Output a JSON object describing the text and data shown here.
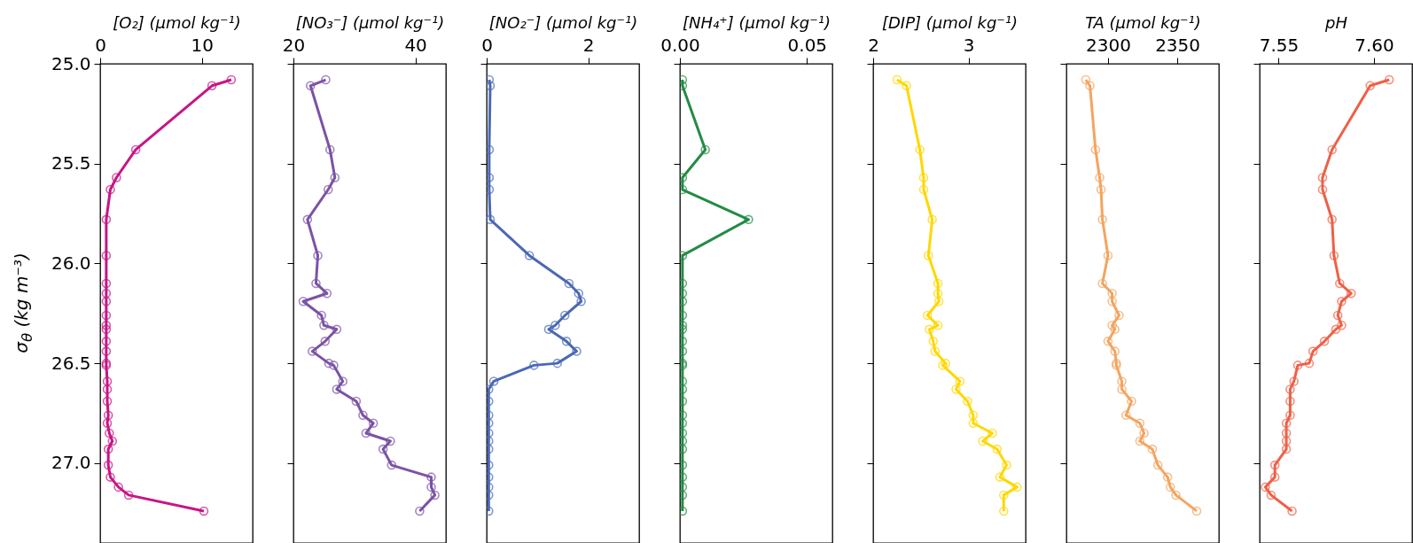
{
  "chart_data": [
    {
      "type": "line",
      "xlabel": "[O₂] (μmol kg⁻¹)",
      "ylabel": "σ$_{θ}$ (kg m⁻³)",
      "color": "#c71585",
      "marker": "circle",
      "xlim": [
        0,
        15
      ],
      "xticks": [
        0,
        10
      ],
      "ylim": [
        27.4,
        25.0
      ],
      "yticks": [
        {
          "value": 25,
          "label": "25.0"
        },
        25.5,
        {
          "value": 26,
          "label": "26.0"
        },
        26.5,
        {
          "value": 27,
          "label": "27.0"
        }
      ],
      "x": [
        12.9,
        11.0,
        3.5,
        1.6,
        1.0,
        0.6,
        0.6,
        0.6,
        0.6,
        0.6,
        0.6,
        0.6,
        0.6,
        0.6,
        0.6,
        0.6,
        0.6,
        0.7,
        0.7,
        0.7,
        0.8,
        0.7,
        0.9,
        1.2,
        0.8,
        0.8,
        1.0,
        1.8,
        2.8,
        10.2
      ],
      "values": [
        25.08,
        25.11,
        25.43,
        25.57,
        25.63,
        25.78,
        25.96,
        26.1,
        26.15,
        26.19,
        26.26,
        26.31,
        26.33,
        26.39,
        26.44,
        26.5,
        26.51,
        26.59,
        26.63,
        26.69,
        26.76,
        26.8,
        26.85,
        26.89,
        26.93,
        27.01,
        27.07,
        27.12,
        27.16,
        27.24
      ]
    },
    {
      "type": "line",
      "xlabel": "[NO₃⁻] (μmol kg⁻¹)",
      "color": "#7b52a6",
      "marker": "circle",
      "tick_labels": "x",
      "xlim": [
        20,
        45
      ],
      "xticks": [
        20,
        40
      ],
      "ylim": [
        27.4,
        25.0
      ],
      "yticks": [
        25,
        25.5,
        26,
        26.5,
        27
      ],
      "x": [
        25.3,
        22.8,
        26.0,
        26.8,
        25.7,
        22.3,
        24.0,
        23.7,
        25.5,
        21.6,
        24.6,
        25.0,
        27.1,
        25.2,
        23.1,
        25.8,
        26.6,
        28.1,
        27.1,
        30.3,
        31.4,
        33.1,
        31.9,
        35.9,
        34.7,
        36.1,
        42.6,
        42.6,
        43.2,
        40.7
      ],
      "values": [
        25.08,
        25.11,
        25.43,
        25.57,
        25.63,
        25.78,
        25.96,
        26.1,
        26.15,
        26.19,
        26.26,
        26.31,
        26.33,
        26.39,
        26.44,
        26.5,
        26.51,
        26.59,
        26.63,
        26.69,
        26.76,
        26.8,
        26.85,
        26.89,
        26.93,
        27.01,
        27.07,
        27.12,
        27.16,
        27.24
      ]
    },
    {
      "type": "line",
      "xlabel": "[NO₂⁻] (μmol kg⁻¹)",
      "color": "#4a69b4",
      "marker": "circle",
      "tick_labels": "x",
      "xlim": [
        0,
        3
      ],
      "xticks": [
        0,
        2
      ],
      "ylim": [
        27.4,
        25.0
      ],
      "yticks": [
        25,
        25.5,
        26,
        26.5,
        27
      ],
      "x": [
        0.05,
        0.07,
        0.05,
        0.05,
        0.05,
        0.07,
        0.84,
        1.62,
        1.81,
        1.86,
        1.54,
        1.35,
        1.22,
        1.57,
        1.77,
        1.39,
        0.93,
        0.14,
        0.04,
        0.04,
        0.04,
        0.04,
        0.04,
        0.04,
        0.04,
        0.04,
        0.04,
        0.04,
        0.04,
        0.04
      ],
      "values": [
        25.08,
        25.11,
        25.43,
        25.57,
        25.63,
        25.78,
        25.96,
        26.1,
        26.15,
        26.19,
        26.26,
        26.31,
        26.33,
        26.39,
        26.44,
        26.5,
        26.51,
        26.59,
        26.63,
        26.69,
        26.76,
        26.8,
        26.85,
        26.89,
        26.93,
        27.01,
        27.07,
        27.12,
        27.16,
        27.24
      ]
    },
    {
      "type": "line",
      "xlabel": "[NH₄⁺] (μmol kg⁻¹)",
      "color": "#238b45",
      "marker": "circle",
      "tick_labels": "x",
      "xlim": [
        0,
        0.06
      ],
      "xticks": [
        {
          "value": 0,
          "label": "0.00"
        },
        0.05
      ],
      "ylim": [
        27.4,
        25.0
      ],
      "yticks": [
        25,
        25.5,
        26,
        26.5,
        27
      ],
      "x": [
        0.001,
        0.001,
        0.01,
        0.001,
        0.001,
        0.027,
        0.001,
        0.001,
        0.001,
        0.001,
        0.001,
        0.001,
        0.001,
        0.001,
        0.001,
        0.001,
        0.001,
        0.001,
        0.001,
        0.001,
        0.001,
        0.001,
        0.001,
        0.001,
        0.001,
        0.001,
        0.001,
        0.001,
        0.001,
        0.001
      ],
      "values": [
        25.08,
        25.11,
        25.43,
        25.57,
        25.63,
        25.78,
        25.96,
        26.1,
        26.15,
        26.19,
        26.26,
        26.31,
        26.33,
        26.39,
        26.44,
        26.5,
        26.51,
        26.59,
        26.63,
        26.69,
        26.76,
        26.8,
        26.85,
        26.89,
        26.93,
        27.01,
        27.07,
        27.12,
        27.16,
        27.24
      ]
    },
    {
      "type": "line",
      "xlabel": "[DIP] (μmol kg⁻¹)",
      "color": "#ffd700",
      "marker": "circle",
      "tick_labels": "x",
      "xlim": [
        2,
        3.6
      ],
      "xticks": [
        2,
        3
      ],
      "ylim": [
        27.4,
        25.0
      ],
      "yticks": [
        25,
        25.5,
        26,
        26.5,
        27
      ],
      "x": [
        2.25,
        2.35,
        2.49,
        2.53,
        2.53,
        2.62,
        2.58,
        2.68,
        2.68,
        2.69,
        2.57,
        2.68,
        2.59,
        2.63,
        2.65,
        2.76,
        2.73,
        2.91,
        2.87,
        2.99,
        3.05,
        3.05,
        3.25,
        3.15,
        3.3,
        3.4,
        3.33,
        3.51,
        3.37,
        3.37
      ],
      "values": [
        25.08,
        25.11,
        25.43,
        25.57,
        25.63,
        25.78,
        25.96,
        26.1,
        26.15,
        26.19,
        26.26,
        26.31,
        26.33,
        26.39,
        26.44,
        26.5,
        26.51,
        26.59,
        26.63,
        26.69,
        26.76,
        26.8,
        26.85,
        26.89,
        26.93,
        27.01,
        27.07,
        27.12,
        27.16,
        27.24
      ]
    },
    {
      "type": "line",
      "xlabel": "TA (μmol kg⁻¹)",
      "color": "#f4a460",
      "marker": "circle",
      "tick_labels": "x",
      "xlim": [
        2270,
        2380
      ],
      "xticks": [
        2300,
        2350
      ],
      "ylim": [
        27.4,
        25.0
      ],
      "yticks": [
        25,
        25.5,
        26,
        26.5,
        27
      ],
      "x": [
        2284,
        2287,
        2291,
        2294,
        2295,
        2296,
        2300,
        2296,
        2303,
        2303,
        2308,
        2303,
        2305,
        2300,
        2305,
        2306,
        2306,
        2310,
        2310,
        2317,
        2313,
        2323,
        2326,
        2323,
        2332,
        2336,
        2343,
        2345,
        2349,
        2364
      ],
      "values": [
        25.08,
        25.11,
        25.43,
        25.57,
        25.63,
        25.78,
        25.96,
        26.1,
        26.15,
        26.19,
        26.26,
        26.31,
        26.33,
        26.39,
        26.44,
        26.5,
        26.51,
        26.59,
        26.63,
        26.69,
        26.76,
        26.8,
        26.85,
        26.89,
        26.93,
        27.01,
        27.07,
        27.12,
        27.16,
        27.24
      ]
    },
    {
      "type": "line",
      "xlabel": "pH",
      "color": "#ee6046",
      "marker": "circle",
      "tick_labels": "x",
      "xlim": [
        7.54,
        7.62
      ],
      "xticks": [
        7.55,
        {
          "value": 7.6,
          "label": "7.60"
        }
      ],
      "ylim": [
        27.4,
        25.0
      ],
      "yticks": [
        25,
        25.5,
        26,
        26.5,
        27
      ],
      "x": [
        7.608,
        7.598,
        7.578,
        7.573,
        7.573,
        7.578,
        7.579,
        7.582,
        7.588,
        7.583,
        7.581,
        7.583,
        7.58,
        7.574,
        7.568,
        7.566,
        7.56,
        7.558,
        7.556,
        7.556,
        7.556,
        7.554,
        7.554,
        7.554,
        7.554,
        7.548,
        7.548,
        7.543,
        7.546,
        7.557
      ],
      "values": [
        25.08,
        25.11,
        25.43,
        25.57,
        25.63,
        25.78,
        25.96,
        26.1,
        26.15,
        26.19,
        26.26,
        26.31,
        26.33,
        26.39,
        26.44,
        26.5,
        26.51,
        26.59,
        26.63,
        26.69,
        26.76,
        26.8,
        26.85,
        26.89,
        26.93,
        27.01,
        27.07,
        27.12,
        27.16,
        27.24
      ]
    }
  ]
}
